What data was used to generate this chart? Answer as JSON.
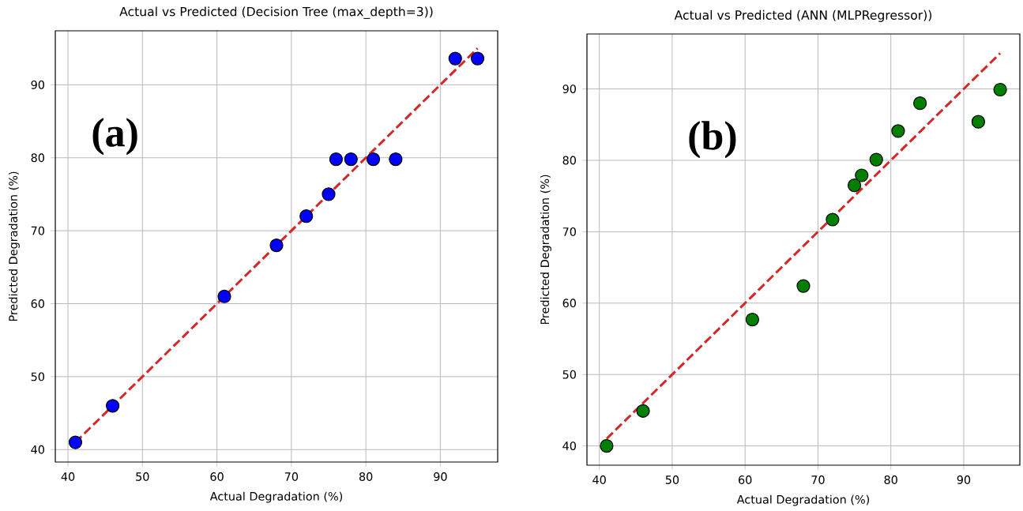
{
  "chart_data": [
    {
      "type": "scatter",
      "title": "Actual vs Predicted (Decision Tree (max_depth=3))",
      "xlabel": "Actual Degradation (%)",
      "ylabel": "Predicted Degradation (%)",
      "xlim": [
        38.3,
        97.7
      ],
      "ylim": [
        38.3,
        97.4
      ],
      "xticks": [
        40,
        50,
        60,
        70,
        80,
        90
      ],
      "yticks": [
        40,
        50,
        60,
        70,
        80,
        90
      ],
      "grid": true,
      "annotations": [
        "(a)"
      ],
      "series": [
        {
          "marker": "circle",
          "color": "#0000ff",
          "x": [
            41,
            46,
            61,
            68,
            72,
            75,
            76,
            78,
            81,
            84,
            92,
            95
          ],
          "values": [
            41,
            46,
            61,
            68,
            72,
            75,
            79.8,
            79.8,
            79.8,
            79.8,
            93.6,
            93.6
          ]
        },
        {
          "type": "line",
          "marker": "none",
          "line_style": "dashed",
          "color": "#d62728",
          "x": [
            41,
            95
          ],
          "values": [
            41,
            95
          ]
        }
      ]
    },
    {
      "type": "scatter",
      "title": "Actual vs Predicted (ANN (MLPRegressor))",
      "xlabel": "Actual Degradation (%)",
      "ylabel": "Predicted Degradation (%)",
      "xlim": [
        38.3,
        97.7
      ],
      "ylim": [
        37.3,
        97.7
      ],
      "xticks": [
        40,
        50,
        60,
        70,
        80,
        90
      ],
      "yticks": [
        40,
        50,
        60,
        70,
        80,
        90
      ],
      "grid": true,
      "annotations": [
        "(b)"
      ],
      "series": [
        {
          "marker": "circle",
          "color": "#007f00",
          "x": [
            41,
            46,
            61,
            68,
            72,
            75,
            76,
            78,
            81,
            84,
            92,
            95
          ],
          "values": [
            40.0,
            44.9,
            57.7,
            62.4,
            71.7,
            76.5,
            77.9,
            80.1,
            84.1,
            88.0,
            85.4,
            89.9
          ]
        },
        {
          "type": "line",
          "marker": "none",
          "line_style": "dashed",
          "color": "#d62728",
          "x": [
            41,
            95
          ],
          "values": [
            41,
            95
          ]
        }
      ]
    }
  ]
}
